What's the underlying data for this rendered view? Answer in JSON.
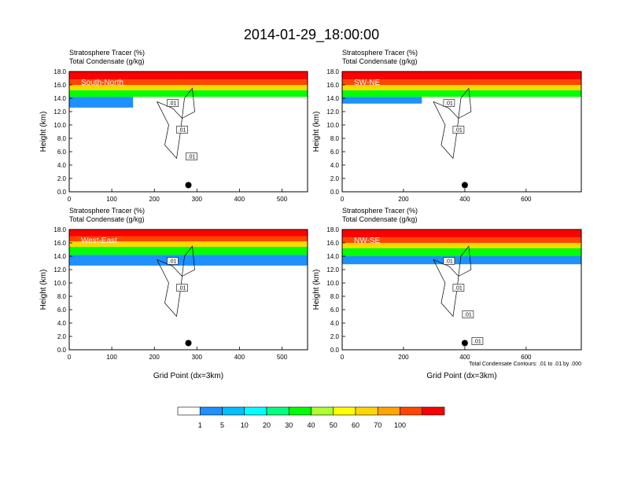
{
  "figure": {
    "title": "2014-01-29_18:00:00"
  },
  "chart_data": [
    {
      "type": "heatmap",
      "cross_section": "South-North",
      "field_labels": [
        "Stratosphere Tracer   (%)",
        "Total Condensate   (g/kg)"
      ],
      "ylabel": "Height (km)",
      "xlabel": "",
      "xlim": [
        0,
        560
      ],
      "ylim": [
        0,
        18
      ],
      "x_ticks": [
        "0",
        "100",
        "200",
        "300",
        "400",
        "500"
      ],
      "y_ticks": [
        "0.0",
        "2.0",
        "4.0",
        "6.0",
        "8.0",
        "10.0",
        "12.0",
        "14.0",
        "16.0",
        "18.0"
      ],
      "tracer_bands": [
        {
          "level": 100,
          "x": [
            0,
            560
          ],
          "y": [
            16.8,
            18
          ]
        },
        {
          "level": 70,
          "x": [
            0,
            560
          ],
          "y": [
            16.0,
            16.8
          ]
        },
        {
          "level": 50,
          "x": [
            0,
            560
          ],
          "y": [
            15.2,
            16.0
          ]
        },
        {
          "level": 20,
          "x": [
            0,
            560
          ],
          "y": [
            14.2,
            15.2
          ]
        },
        {
          "level": 5,
          "x": [
            0,
            150
          ],
          "y": [
            12.6,
            14.2
          ]
        }
      ],
      "contour_labels": [
        ".01",
        ".01",
        ".01"
      ],
      "marker_x": 280,
      "marker_y": 1.0
    },
    {
      "type": "heatmap",
      "cross_section": "SW-NE",
      "field_labels": [
        "Stratosphere Tracer   (%)",
        "Total Condensate   (g/kg)"
      ],
      "ylabel": "Height (km)",
      "xlabel": "",
      "xlim": [
        0,
        780
      ],
      "ylim": [
        0,
        18
      ],
      "x_ticks": [
        "0",
        "200",
        "400",
        "600"
      ],
      "y_ticks": [
        "0.0",
        "2.0",
        "4.0",
        "6.0",
        "8.0",
        "10.0",
        "12.0",
        "14.0",
        "16.0",
        "18.0"
      ],
      "tracer_bands": [
        {
          "level": 100,
          "x": [
            0,
            780
          ],
          "y": [
            16.8,
            18
          ]
        },
        {
          "level": 70,
          "x": [
            0,
            780
          ],
          "y": [
            16.0,
            16.8
          ]
        },
        {
          "level": 50,
          "x": [
            0,
            780
          ],
          "y": [
            15.2,
            16.0
          ]
        },
        {
          "level": 20,
          "x": [
            0,
            780
          ],
          "y": [
            14.2,
            15.2
          ]
        },
        {
          "level": 5,
          "x": [
            0,
            260
          ],
          "y": [
            13.2,
            14.2
          ]
        }
      ],
      "contour_labels": [
        ".01",
        ".01"
      ],
      "marker_x": 400,
      "marker_y": 1.0
    },
    {
      "type": "heatmap",
      "cross_section": "West-East",
      "field_labels": [
        "Stratosphere Tracer   (%)",
        "Total Condensate   (g/kg)"
      ],
      "ylabel": "Height (km)",
      "xlabel": "Grid Point (dx=3km)",
      "xlim": [
        0,
        560
      ],
      "ylim": [
        0,
        18
      ],
      "x_ticks": [
        "0",
        "100",
        "200",
        "300",
        "400",
        "500"
      ],
      "y_ticks": [
        "0.0",
        "2.0",
        "4.0",
        "6.0",
        "8.0",
        "10.0",
        "12.0",
        "14.0",
        "16.0",
        "18.0"
      ],
      "tracer_bands": [
        {
          "level": 100,
          "x": [
            0,
            560
          ],
          "y": [
            17.0,
            18
          ]
        },
        {
          "level": 70,
          "x": [
            0,
            560
          ],
          "y": [
            16.2,
            17.0
          ]
        },
        {
          "level": 50,
          "x": [
            0,
            560
          ],
          "y": [
            15.4,
            16.2
          ]
        },
        {
          "level": 20,
          "x": [
            0,
            560
          ],
          "y": [
            14.2,
            15.4
          ]
        },
        {
          "level": 5,
          "x": [
            0,
            560
          ],
          "y": [
            12.6,
            14.2
          ]
        }
      ],
      "contour_labels": [
        ".01",
        ".01"
      ],
      "marker_x": 280,
      "marker_y": 1.0
    },
    {
      "type": "heatmap",
      "cross_section": "NW-SE",
      "field_labels": [
        "Stratosphere Tracer   (%)",
        "Total Condensate   (g/kg)"
      ],
      "ylabel": "Height (km)",
      "xlabel": "Grid Point (dx=3km)",
      "xlim": [
        0,
        780
      ],
      "ylim": [
        0,
        18
      ],
      "x_ticks": [
        "0",
        "200",
        "400",
        "600"
      ],
      "y_ticks": [
        "0.0",
        "2.0",
        "4.0",
        "6.0",
        "8.0",
        "10.0",
        "12.0",
        "14.0",
        "16.0",
        "18.0"
      ],
      "tracer_bands": [
        {
          "level": 100,
          "x": [
            0,
            780
          ],
          "y": [
            16.8,
            18
          ]
        },
        {
          "level": 70,
          "x": [
            0,
            780
          ],
          "y": [
            16.0,
            16.8
          ]
        },
        {
          "level": 50,
          "x": [
            0,
            780
          ],
          "y": [
            15.2,
            16.0
          ]
        },
        {
          "level": 20,
          "x": [
            0,
            780
          ],
          "y": [
            14.0,
            15.2
          ]
        },
        {
          "level": 5,
          "x": [
            0,
            780
          ],
          "y": [
            12.8,
            14.0
          ]
        }
      ],
      "contour_labels": [
        ".01",
        ".01",
        ".01",
        ".01"
      ],
      "footnote": "Total Condensate Contours: .01 to .01 by .000",
      "marker_x": 400,
      "marker_y": 1.0
    }
  ],
  "colorbar": {
    "levels": [
      "1",
      "5",
      "10",
      "20",
      "30",
      "40",
      "50",
      "60",
      "70",
      "100"
    ],
    "colors": [
      "#ffffff",
      "#1e90ff",
      "#00bfff",
      "#00ffff",
      "#00ff7f",
      "#00ff00",
      "#adff2f",
      "#ffff00",
      "#ffd700",
      "#ffa500",
      "#ff4500",
      "#ff0000"
    ]
  }
}
